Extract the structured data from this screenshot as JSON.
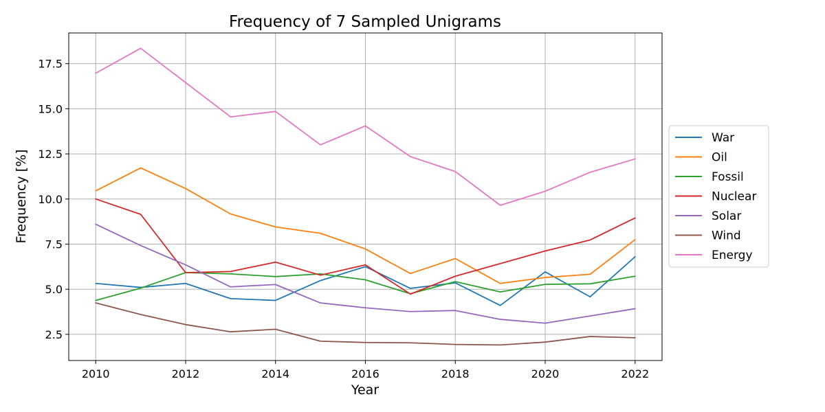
{
  "chart_data": {
    "type": "line",
    "title": "Frequency of 7 Sampled Unigrams",
    "xlabel": "Year",
    "ylabel": "Frequency [%]",
    "x": [
      2010,
      2011,
      2012,
      2013,
      2014,
      2015,
      2016,
      2017,
      2018,
      2019,
      2020,
      2021,
      2022
    ],
    "xlim": [
      2009.4,
      2022.6
    ],
    "ylim": [
      1.05,
      19.2
    ],
    "xticks": [
      2010,
      2012,
      2014,
      2016,
      2018,
      2020,
      2022
    ],
    "yticks": [
      2.5,
      5.0,
      7.5,
      10.0,
      12.5,
      15.0,
      17.5
    ],
    "ytick_labels": [
      "2.5",
      "5.0",
      "7.5",
      "10.0",
      "12.5",
      "15.0",
      "17.5"
    ],
    "grid": true,
    "legend_position": "outside-right",
    "series": [
      {
        "name": "War",
        "color": "#1f77b4",
        "values": [
          5.32,
          5.1,
          5.32,
          4.48,
          4.38,
          5.48,
          6.25,
          5.05,
          5.35,
          4.1,
          5.96,
          4.58,
          6.8
        ]
      },
      {
        "name": "Oil",
        "color": "#ff7f0e",
        "values": [
          10.45,
          11.72,
          10.58,
          9.17,
          8.45,
          8.1,
          7.23,
          5.87,
          6.7,
          5.32,
          5.65,
          5.83,
          7.75
        ]
      },
      {
        "name": "Fossil",
        "color": "#2ca02c",
        "values": [
          4.38,
          5.06,
          5.92,
          5.85,
          5.7,
          5.85,
          5.52,
          4.75,
          5.42,
          4.85,
          5.27,
          5.3,
          5.72
        ]
      },
      {
        "name": "Nuclear",
        "color": "#d62728",
        "values": [
          10.0,
          9.15,
          5.92,
          5.98,
          6.5,
          5.78,
          6.35,
          4.73,
          5.72,
          6.42,
          7.12,
          7.73,
          8.95
        ]
      },
      {
        "name": "Solar",
        "color": "#9467bd",
        "values": [
          8.6,
          7.42,
          6.35,
          5.13,
          5.26,
          4.24,
          3.97,
          3.76,
          3.82,
          3.33,
          3.12,
          3.52,
          3.92
        ]
      },
      {
        "name": "Wind",
        "color": "#8c564b",
        "values": [
          4.24,
          3.6,
          3.04,
          2.64,
          2.78,
          2.12,
          2.05,
          2.03,
          1.94,
          1.91,
          2.07,
          2.38,
          2.31
        ]
      },
      {
        "name": "Energy",
        "color": "#e377c2",
        "values": [
          16.97,
          18.35,
          16.45,
          14.55,
          14.85,
          13.0,
          14.05,
          12.35,
          11.52,
          9.65,
          10.43,
          11.48,
          12.22
        ]
      }
    ]
  }
}
